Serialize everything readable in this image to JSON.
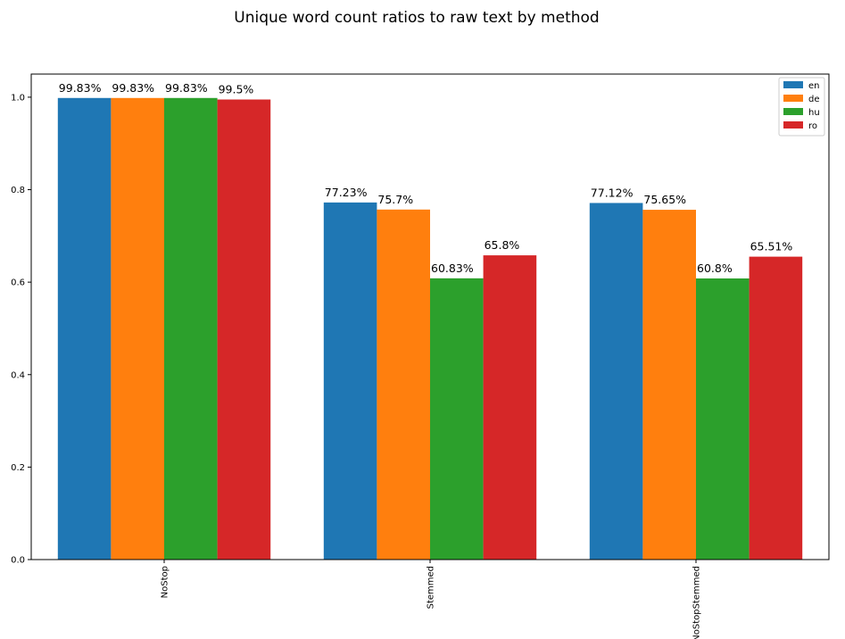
{
  "chart_data": {
    "type": "bar",
    "title": "Unique word count ratios to raw text by method",
    "xlabel": "",
    "ylabel": "",
    "categories": [
      "NoStop",
      "Stemmed",
      "NoStopStemmed"
    ],
    "series": [
      {
        "name": "en",
        "color": "#1f77b4",
        "values": [
          0.9983,
          0.7723,
          0.7712
        ],
        "labels": [
          "99.83%",
          "77.23%",
          "77.12%"
        ]
      },
      {
        "name": "de",
        "color": "#ff7f0e",
        "values": [
          0.9983,
          0.757,
          0.7565
        ],
        "labels": [
          "99.83%",
          "75.7%",
          "75.65%"
        ]
      },
      {
        "name": "hu",
        "color": "#2ca02c",
        "values": [
          0.9983,
          0.6083,
          0.608
        ],
        "labels": [
          "99.83%",
          "60.83%",
          "60.8%"
        ]
      },
      {
        "name": "ro",
        "color": "#d62728",
        "values": [
          0.995,
          0.658,
          0.6551
        ],
        "labels": [
          "99.5%",
          "65.8%",
          "65.51%"
        ]
      }
    ],
    "ylim": [
      0,
      1.05
    ],
    "yticks": [
      0.0,
      0.2,
      0.4,
      0.6,
      0.8,
      1.0
    ],
    "ytick_labels": [
      "0.0",
      "0.2",
      "0.4",
      "0.6",
      "0.8",
      "1.0"
    ],
    "grid": false,
    "legend_position": "top-right",
    "xtick_rotation": "vertical"
  }
}
